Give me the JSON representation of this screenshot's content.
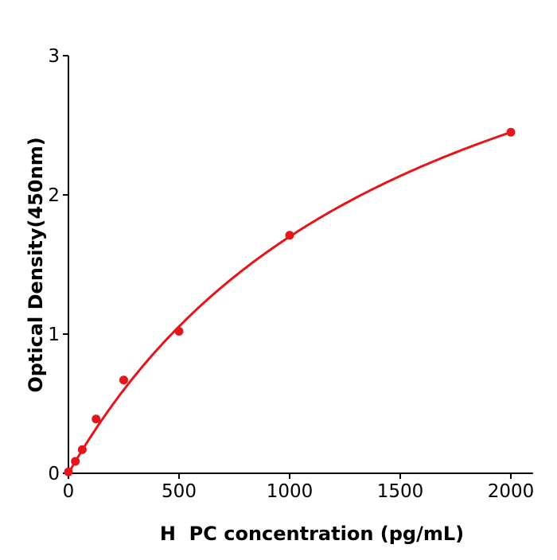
{
  "chart_data": {
    "type": "scatter",
    "xlabel": "H  PC concentration (pg/mL)",
    "ylabel": "Optical Density(450nm)",
    "xlim": [
      0,
      2100
    ],
    "ylim": [
      0,
      3
    ],
    "xticks": [
      0,
      500,
      1000,
      1500,
      2000
    ],
    "yticks": [
      0,
      1,
      2,
      3
    ],
    "grid": false,
    "color": "#e8141b",
    "points": {
      "x": [
        0,
        31.25,
        62.5,
        125,
        250,
        500,
        1000,
        2000
      ],
      "y": [
        0.01,
        0.086,
        0.17,
        0.39,
        0.67,
        1.02,
        1.71,
        2.45
      ]
    },
    "fit_curve": {
      "model": "hyperbolic",
      "c": 4.383,
      "k": 1578
    }
  }
}
